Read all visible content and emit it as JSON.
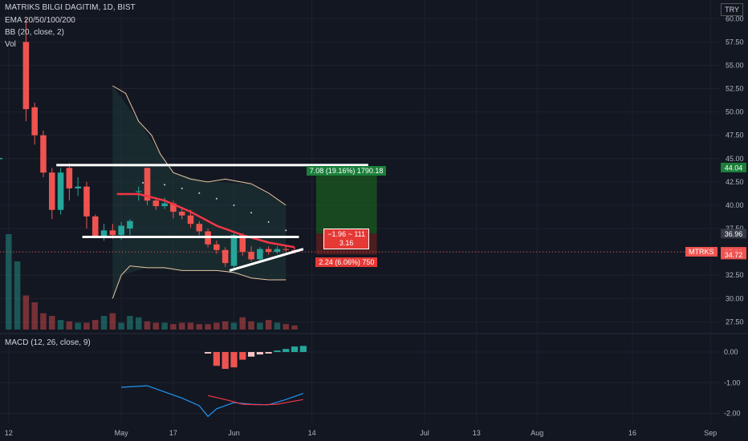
{
  "header": {
    "symbol_line": "MATRIKS BILGI DAGITIM, 1D, BIST",
    "ema_label": "EMA 20/50/100/200",
    "bb_label": "BB (20, close, 2)",
    "vol_label": "Vol",
    "currency": "TRY"
  },
  "macd": {
    "label": "MACD (12, 26, close, 9)"
  },
  "colors": {
    "up": "#26a69a",
    "down": "#ef5350",
    "background": "#131722",
    "grid": "#1e222d",
    "text": "#b2b5be",
    "ema": "#f23645",
    "bb": "#e8c6a0",
    "profit": "#1b7f3a",
    "loss": "#d32f2f",
    "macd_line": "#2196f3",
    "signal_line": "#f23645"
  },
  "chart_data": {
    "type": "candlestick",
    "price_axis": {
      "ticks": [
        "60.00",
        "57.50",
        "55.00",
        "52.50",
        "50.00",
        "47.50",
        "45.00",
        "42.50",
        "40.00",
        "37.50",
        "35.00",
        "32.50",
        "30.00",
        "27.50"
      ],
      "ylim": [
        26.5,
        62
      ]
    },
    "macd_axis": {
      "ticks": [
        "0.00",
        "-1.00",
        "-2.00"
      ],
      "ylim": [
        -2.3,
        0.55
      ]
    },
    "x_axis": {
      "ticks": [
        {
          "label": "12",
          "i": 0
        },
        {
          "label": "May",
          "i": 13
        },
        {
          "label": "17",
          "i": 19
        },
        {
          "label": "Jun",
          "i": 26
        },
        {
          "label": "14",
          "i": 35
        },
        {
          "label": "Jul",
          "i": 48
        },
        {
          "label": "13",
          "i": 54
        },
        {
          "label": "Aug",
          "i": 61
        },
        {
          "label": "16",
          "i": 72
        },
        {
          "label": "Sep",
          "i": 81
        }
      ],
      "xlim": [
        -1,
        82
      ]
    },
    "candles": [
      {
        "i": 2,
        "o": 57.5,
        "h": 60,
        "l": 49,
        "c": 50.3
      },
      {
        "i": 3,
        "o": 50.5,
        "h": 51,
        "l": 46.5,
        "c": 47.5
      },
      {
        "i": 4,
        "o": 47.5,
        "h": 48,
        "l": 43,
        "c": 43.5
      },
      {
        "i": 5,
        "o": 43.5,
        "h": 44,
        "l": 38.5,
        "c": 39.5
      },
      {
        "i": 6,
        "o": 39.5,
        "h": 44,
        "l": 39,
        "c": 43.5
      },
      {
        "i": 7,
        "o": 44,
        "h": 44.5,
        "l": 40.5,
        "c": 41.8
      },
      {
        "i": 8,
        "o": 41.8,
        "h": 43,
        "l": 41,
        "c": 42
      },
      {
        "i": 9,
        "o": 42,
        "h": 42.5,
        "l": 37.5,
        "c": 38.8
      },
      {
        "i": 10,
        "o": 38.8,
        "h": 39,
        "l": 36.5,
        "c": 36.7
      },
      {
        "i": 11,
        "o": 36.7,
        "h": 38,
        "l": 36.2,
        "c": 37.3
      },
      {
        "i": 12,
        "o": 37.3,
        "h": 38,
        "l": 36.4,
        "c": 36.8
      },
      {
        "i": 13,
        "o": 36.8,
        "h": 38.2,
        "l": 36.3,
        "c": 37.8
      },
      {
        "i": 14,
        "o": 37.5,
        "h": 38.5,
        "l": 36.8,
        "c": 38.3
      },
      {
        "i": 15,
        "o": 41.5,
        "h": 42,
        "l": 40.5,
        "c": 41.5
      },
      {
        "i": 16,
        "o": 44,
        "h": 44,
        "l": 40,
        "c": 40.5
      },
      {
        "i": 17,
        "o": 40.5,
        "h": 40.8,
        "l": 39.5,
        "c": 39.9
      },
      {
        "i": 18,
        "o": 39.9,
        "h": 40.8,
        "l": 39.6,
        "c": 40.2
      },
      {
        "i": 19,
        "o": 40.2,
        "h": 40.5,
        "l": 38.6,
        "c": 39.3
      },
      {
        "i": 20,
        "o": 39.3,
        "h": 39.8,
        "l": 38.5,
        "c": 38.9
      },
      {
        "i": 21,
        "o": 38.9,
        "h": 39.5,
        "l": 37.6,
        "c": 38
      },
      {
        "i": 22,
        "o": 38,
        "h": 38.3,
        "l": 36.8,
        "c": 37.2
      },
      {
        "i": 23,
        "o": 37.2,
        "h": 37.5,
        "l": 35.5,
        "c": 35.8
      },
      {
        "i": 24,
        "o": 35.8,
        "h": 36.2,
        "l": 34.8,
        "c": 35.2
      },
      {
        "i": 25,
        "o": 35.2,
        "h": 35.5,
        "l": 33.4,
        "c": 33.8
      },
      {
        "i": 26,
        "o": 33.5,
        "h": 37,
        "l": 33.3,
        "c": 36.8
      },
      {
        "i": 27,
        "o": 36.8,
        "h": 37,
        "l": 34.6,
        "c": 35
      },
      {
        "i": 28,
        "o": 35,
        "h": 35.6,
        "l": 34,
        "c": 34.2
      },
      {
        "i": 29,
        "o": 34.2,
        "h": 35.5,
        "l": 34,
        "c": 35.3
      },
      {
        "i": 30,
        "o": 35.3,
        "h": 35.6,
        "l": 34.7,
        "c": 35
      },
      {
        "i": 31,
        "o": 35,
        "h": 35.6,
        "l": 34.8,
        "c": 35.3
      },
      {
        "i": 32,
        "o": 35.3,
        "h": 35.7,
        "l": 35,
        "c": 35.2
      },
      {
        "i": 33,
        "o": 35.2,
        "h": 35.5,
        "l": 34.8,
        "c": 35
      }
    ],
    "ema_red": [
      [
        12.5,
        41.2
      ],
      [
        15,
        41.2
      ],
      [
        18,
        40.5
      ],
      [
        21,
        39.3
      ],
      [
        24,
        37.8
      ],
      [
        27,
        36.8
      ],
      [
        30,
        36
      ],
      [
        33,
        35.5
      ]
    ],
    "ema_dots": [
      [
        15.5,
        42.4
      ],
      [
        18,
        42.2
      ],
      [
        20,
        41.8
      ],
      [
        22,
        41.3
      ],
      [
        24,
        40.7
      ],
      [
        26,
        40
      ],
      [
        28,
        39.2
      ],
      [
        30,
        38.2
      ],
      [
        32,
        37.3
      ]
    ],
    "ema_dashes": [
      [
        -1,
        45
      ],
      [
        -3,
        40.1
      ],
      [
        -4,
        38.6
      ],
      [
        -2,
        36.8
      ],
      [
        -5,
        33.3
      ],
      [
        -6,
        31
      ]
    ],
    "bb_upper": [
      [
        12,
        52.8
      ],
      [
        13.5,
        52
      ],
      [
        15,
        49
      ],
      [
        16.5,
        47.5
      ],
      [
        17.5,
        45.5
      ],
      [
        19,
        43.5
      ],
      [
        21,
        42.8
      ],
      [
        23,
        42.5
      ],
      [
        25,
        42.8
      ],
      [
        28,
        42.3
      ],
      [
        30,
        41.3
      ],
      [
        32,
        40
      ]
    ],
    "bb_lower": [
      [
        12,
        30
      ],
      [
        13,
        32.5
      ],
      [
        14,
        33.5
      ],
      [
        16,
        33.3
      ],
      [
        18,
        33.3
      ],
      [
        20,
        33
      ],
      [
        22,
        33
      ],
      [
        24,
        33
      ],
      [
        26,
        32.8
      ],
      [
        28,
        32.2
      ],
      [
        30,
        32
      ],
      [
        32,
        32
      ]
    ],
    "bb_fill": [
      [
        12,
        52.8
      ],
      [
        15,
        49
      ],
      [
        17.5,
        45.5
      ],
      [
        19,
        43.5
      ],
      [
        23,
        42.5
      ],
      [
        28,
        42.3
      ],
      [
        32,
        40
      ],
      [
        32,
        32
      ],
      [
        28,
        32.2
      ],
      [
        24,
        33
      ],
      [
        20,
        33
      ],
      [
        16,
        33.3
      ],
      [
        13,
        32.5
      ],
      [
        12,
        30
      ]
    ],
    "lines": [
      {
        "from": [
          5.5,
          44.3
        ],
        "to": [
          41.5,
          44.3
        ]
      },
      {
        "from": [
          8.5,
          36.6
        ],
        "to": [
          33.5,
          36.6
        ]
      },
      {
        "from": [
          25.5,
          33
        ],
        "to": [
          34,
          35.3
        ]
      }
    ],
    "position": {
      "x0": 35.5,
      "x1": 42.5,
      "entry": 36.96,
      "target": 44.04,
      "stop": 34.72,
      "target_label": "7.08 (19.16%) 1790.18",
      "stop_label": "2.24 (6.06%) 750",
      "mid_label_1": "−1.96 ~ 111",
      "mid_label_2": "3.16"
    },
    "price_tags": [
      {
        "text": "44.04",
        "value": 44.04,
        "style": "green"
      },
      {
        "text": "36.96",
        "value": 36.96,
        "style": "gray"
      },
      {
        "text": "35.00",
        "value": 35.0,
        "style": "red"
      },
      {
        "text": "34.72",
        "value": 34.72,
        "style": "red"
      }
    ],
    "last_price_label": "MTRKS",
    "last_price": 35.0,
    "volume": [
      0.7,
      0.5,
      0.25,
      0.2,
      0.12,
      0.1,
      0.07,
      0.06,
      0.05,
      0.05,
      0.07,
      0.1,
      0.12,
      0.05,
      0.1,
      0.09,
      0.06,
      0.05,
      0.05,
      0.04,
      0.05,
      0.05,
      0.04,
      0.04,
      0.05,
      0.06,
      0.05,
      0.09,
      0.06,
      0.05,
      0.07,
      0.05,
      0.04,
      0.03
    ],
    "macd_hist": [
      {
        "i": 23,
        "v": -0.05
      },
      {
        "i": 24,
        "v": -0.45
      },
      {
        "i": 25,
        "v": -0.55
      },
      {
        "i": 26,
        "v": -0.5
      },
      {
        "i": 27,
        "v": -0.25
      },
      {
        "i": 28,
        "v": -0.15
      },
      {
        "i": 29,
        "v": -0.08
      },
      {
        "i": 30,
        "v": -0.05
      },
      {
        "i": 31,
        "v": 0.05
      },
      {
        "i": 32,
        "v": 0.1
      },
      {
        "i": 33,
        "v": 0.18
      },
      {
        "i": 34,
        "v": 0.2
      }
    ],
    "macd_line": [
      [
        13,
        -1.15
      ],
      [
        16,
        -1.1
      ],
      [
        18,
        -1.3
      ],
      [
        20,
        -1.5
      ],
      [
        22,
        -1.75
      ],
      [
        23,
        -2.1
      ],
      [
        24,
        -1.85
      ],
      [
        26,
        -1.65
      ],
      [
        28,
        -1.7
      ],
      [
        30,
        -1.72
      ],
      [
        32,
        -1.55
      ],
      [
        34,
        -1.35
      ]
    ],
    "signal_line": [
      [
        23,
        -1.42
      ],
      [
        25,
        -1.55
      ],
      [
        27,
        -1.7
      ],
      [
        29,
        -1.72
      ],
      [
        31,
        -1.7
      ],
      [
        33,
        -1.6
      ],
      [
        34,
        -1.55
      ]
    ]
  }
}
